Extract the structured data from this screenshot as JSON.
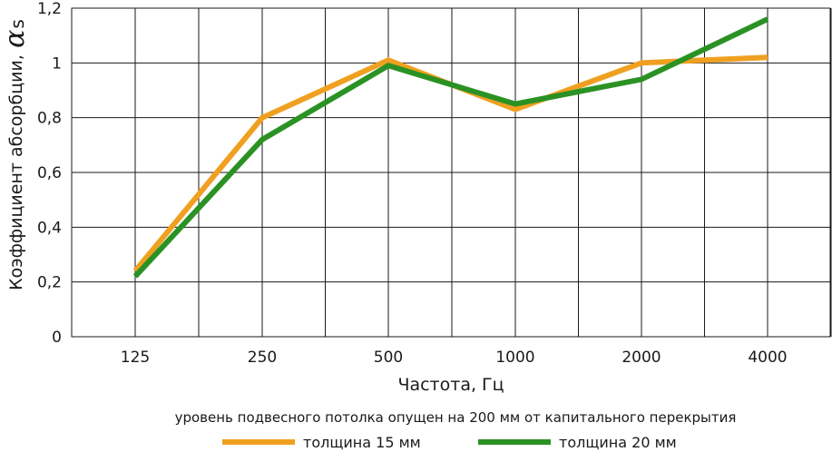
{
  "chart_data": {
    "type": "line",
    "categories": [
      "125",
      "250",
      "500",
      "1000",
      "2000",
      "4000"
    ],
    "series": [
      {
        "name": "толщина 15 мм",
        "color": "#f0a020",
        "values": [
          0.24,
          0.8,
          1.01,
          0.83,
          1.0,
          1.02
        ]
      },
      {
        "name": "толщина 20 мм",
        "color": "#2a9224",
        "values": [
          0.22,
          0.72,
          0.99,
          0.85,
          0.94,
          1.16
        ]
      }
    ],
    "xlabel": "Частота, Гц",
    "ylabel": "Коэффициент абсорбции,",
    "ylabel_symbol": "α",
    "ylabel_symbol_sub": "s",
    "ylim": [
      0,
      1.2
    ],
    "yticks": [
      0,
      0.2,
      0.4,
      0.6,
      0.8,
      1,
      1.2
    ],
    "ytick_labels": [
      "0",
      "0,2",
      "0,4",
      "0,6",
      "0,8",
      "1",
      "1,2"
    ],
    "grid": true,
    "note": "уровень подвесного потолка опущен на 200 мм от капитального перекрытия",
    "legend_position": "bottom-center"
  }
}
